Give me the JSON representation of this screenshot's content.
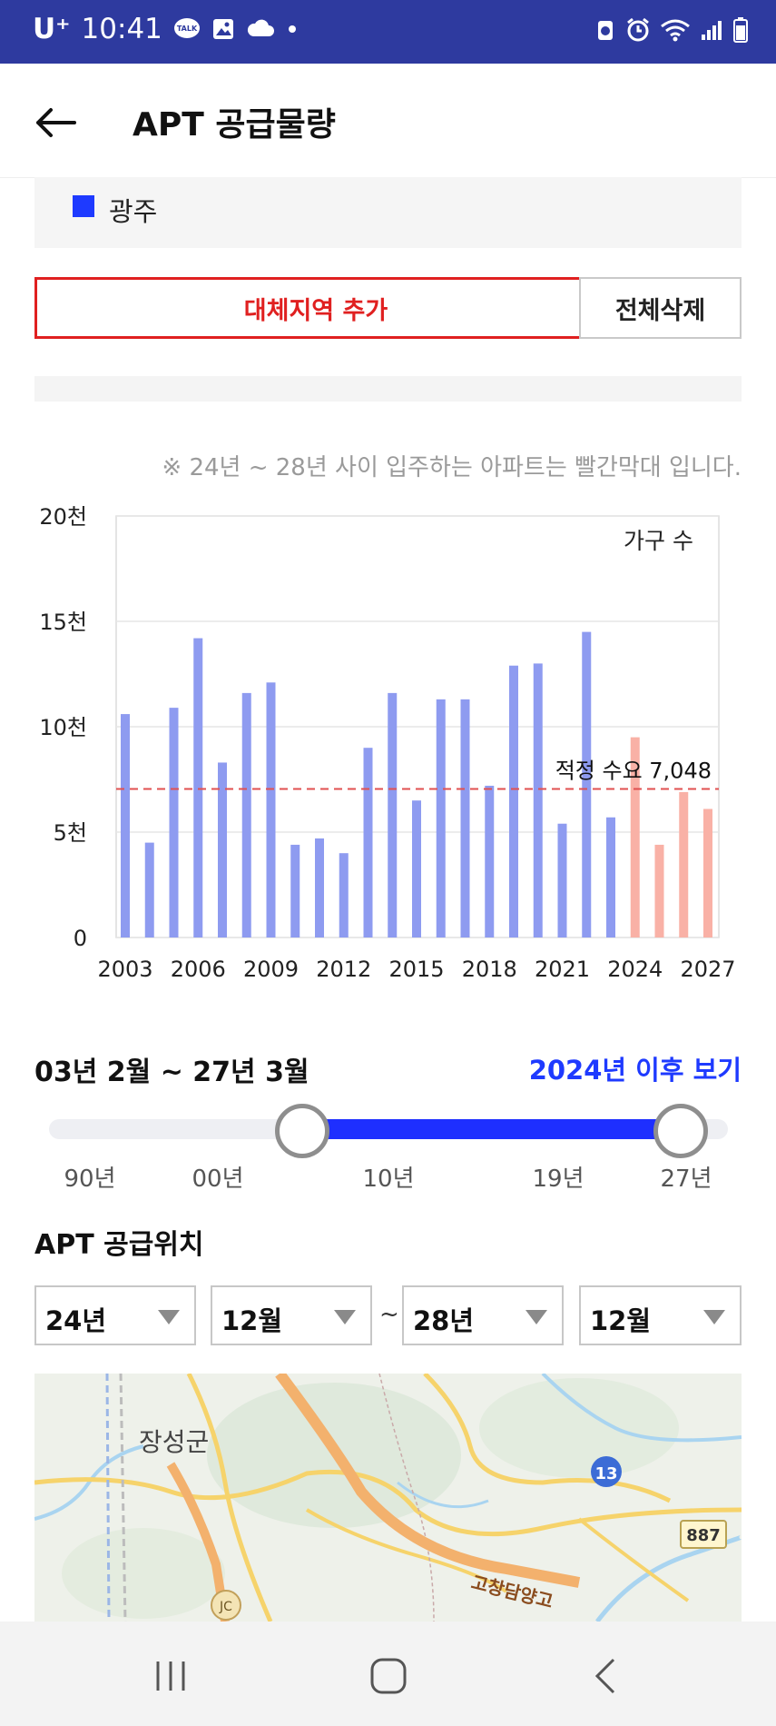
{
  "status_bar": {
    "carrier": "U⁺",
    "time": "10:41"
  },
  "app_bar": {
    "title": "APT 공급물량"
  },
  "legend": {
    "region": "광주",
    "color": "#1e3aff"
  },
  "buttons": {
    "add_region": "대체지역 추가",
    "delete_all": "전체삭제"
  },
  "note": "※ 24년 ~ 28년 사이 입주하는 아파트는 빨간막대 입니다.",
  "chart_data": {
    "type": "bar",
    "unit_label": "가구 수",
    "y_ticks": [
      "20천",
      "15천",
      "10천",
      "5천",
      "0"
    ],
    "ylim": [
      0,
      20000
    ],
    "x_tick_labels": [
      "2003",
      "2006",
      "2009",
      "2012",
      "2015",
      "2018",
      "2021",
      "2024",
      "2027"
    ],
    "categories": [
      2003,
      2004,
      2005,
      2006,
      2007,
      2008,
      2009,
      2010,
      2011,
      2012,
      2013,
      2014,
      2015,
      2016,
      2017,
      2018,
      2019,
      2020,
      2021,
      2022,
      2023,
      2024,
      2025,
      2026,
      2027
    ],
    "values": [
      10600,
      4500,
      10900,
      14200,
      8300,
      11600,
      12100,
      4400,
      4700,
      4000,
      9000,
      11600,
      6500,
      11300,
      11300,
      7200,
      12900,
      13000,
      5400,
      14500,
      5700,
      9500,
      4400,
      6900,
      6100
    ],
    "colors": {
      "past": "#8e9bf0",
      "future": "#f9b1a6"
    },
    "future_from": 2024,
    "reference_line": {
      "label": "적정 수요 7,048",
      "value": 7048,
      "color": "#e05050"
    },
    "grid": true
  },
  "range": {
    "period": "03년 2월 ~ 27년 3월",
    "view_after": "2024년 이후 보기",
    "slider_ticks": [
      "90년",
      "00년",
      "10년",
      "19년",
      "27년"
    ]
  },
  "location": {
    "title": "APT 공급위치",
    "from_year": "24년",
    "from_month": "12월",
    "tilde": "~",
    "to_year": "28년",
    "to_month": "12월"
  },
  "map": {
    "place_label": "장성군",
    "road_13": "13",
    "road_887": "887",
    "jc": "JC",
    "highway": "고창담양고"
  }
}
